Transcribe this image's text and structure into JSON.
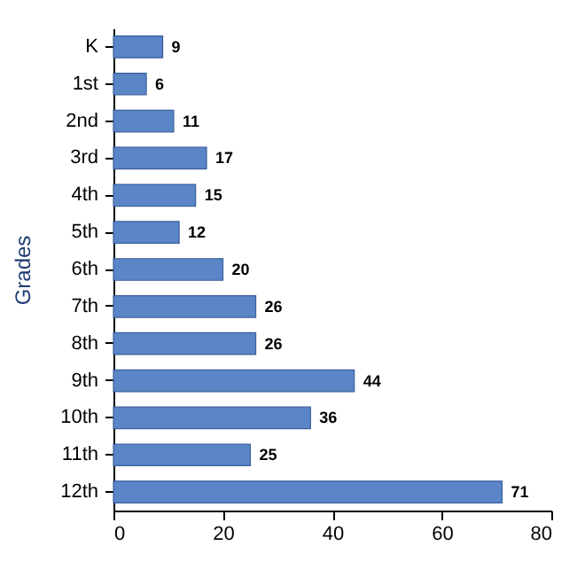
{
  "chart_data": {
    "type": "bar",
    "orientation": "horizontal",
    "ylabel": "Grades",
    "categories": [
      "K",
      "1st",
      "2nd",
      "3rd",
      "4th",
      "5th",
      "6th",
      "7th",
      "8th",
      "9th",
      "10th",
      "11th",
      "12th"
    ],
    "values": [
      9,
      6,
      11,
      17,
      15,
      12,
      20,
      26,
      26,
      44,
      36,
      25,
      71
    ],
    "color": "#5a86c8",
    "xlim": [
      0,
      80
    ],
    "xticks": [
      0,
      20,
      40,
      60,
      80
    ],
    "grid": false,
    "data_labels": true
  }
}
